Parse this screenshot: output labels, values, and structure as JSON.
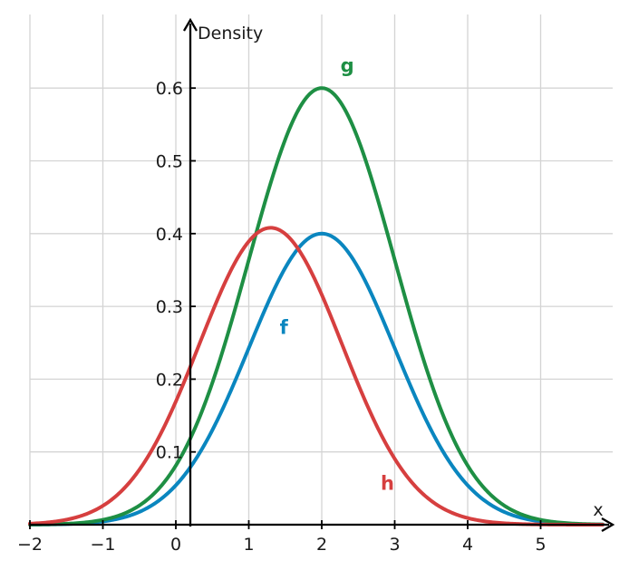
{
  "chart_data": {
    "type": "line",
    "xlabel": "x",
    "ylabel": "Density",
    "xlim": [
      -2,
      5.9
    ],
    "ylim": [
      0,
      0.68
    ],
    "xticks": [
      {
        "value": -2,
        "label": "−2"
      },
      {
        "value": -1,
        "label": "−1"
      },
      {
        "value": 0,
        "label": "0"
      },
      {
        "value": 1,
        "label": "1"
      },
      {
        "value": 2,
        "label": "2"
      },
      {
        "value": 3,
        "label": "3"
      },
      {
        "value": 4,
        "label": "4"
      },
      {
        "value": 5,
        "label": "5"
      }
    ],
    "yticks": [
      {
        "value": 0.1,
        "label": "0.1"
      },
      {
        "value": 0.2,
        "label": "0.2"
      },
      {
        "value": 0.3,
        "label": "0.3"
      },
      {
        "value": 0.4,
        "label": "0.4"
      },
      {
        "value": 0.5,
        "label": "0.5"
      },
      {
        "value": 0.6,
        "label": "0.6"
      }
    ],
    "grid": true,
    "series": [
      {
        "name": "f",
        "color": "#0a86bf",
        "mean": 2,
        "sd": 1,
        "peak": 0.4,
        "label_point": {
          "x": 1.48,
          "y": 0.262
        }
      },
      {
        "name": "g",
        "color": "#1e8f44",
        "mean": 2,
        "sd": 1,
        "peak": 0.6,
        "label_point": {
          "x": 2.35,
          "y": 0.622
        }
      },
      {
        "name": "h",
        "color": "#d63f3f",
        "mean": 1.3,
        "sd": 0.98,
        "peak": 0.408,
        "label_point": {
          "x": 2.9,
          "y": 0.048
        }
      }
    ]
  }
}
